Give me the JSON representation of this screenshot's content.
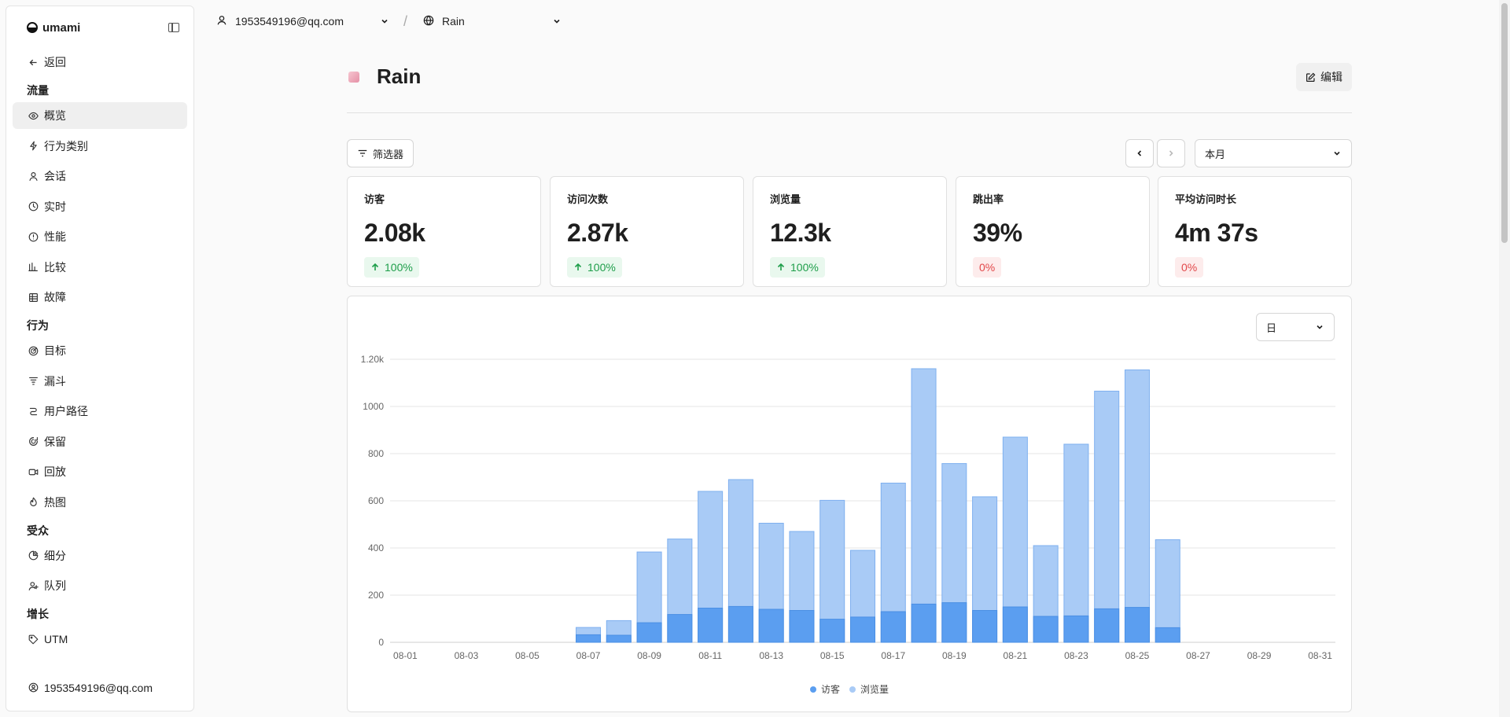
{
  "sidebar": {
    "brand": "umami",
    "back": "返回",
    "sections": [
      {
        "title": "流量",
        "items": [
          {
            "label": "概览",
            "icon": "eye-icon",
            "active": true
          },
          {
            "label": "行为类别",
            "icon": "bolt-icon"
          },
          {
            "label": "会话",
            "icon": "user-icon"
          },
          {
            "label": "实时",
            "icon": "clock-icon"
          },
          {
            "label": "性能",
            "icon": "gauge-icon"
          },
          {
            "label": "比较",
            "icon": "compare-icon"
          },
          {
            "label": "故障",
            "icon": "grid-icon"
          }
        ]
      },
      {
        "title": "行为",
        "items": [
          {
            "label": "目标",
            "icon": "target-icon"
          },
          {
            "label": "漏斗",
            "icon": "funnel-icon"
          },
          {
            "label": "用户路径",
            "icon": "path-icon"
          },
          {
            "label": "保留",
            "icon": "retention-icon"
          },
          {
            "label": "回放",
            "icon": "video-icon"
          },
          {
            "label": "热图",
            "icon": "flame-icon"
          }
        ]
      },
      {
        "title": "受众",
        "items": [
          {
            "label": "细分",
            "icon": "pie-icon"
          },
          {
            "label": "队列",
            "icon": "user-plus-icon"
          }
        ]
      },
      {
        "title": "增长",
        "items": [
          {
            "label": "UTM",
            "icon": "tag-icon"
          }
        ]
      }
    ],
    "user": "1953549196@qq.com"
  },
  "topbar": {
    "user": "1953549196@qq.com",
    "separator": "/",
    "site": "Rain"
  },
  "header": {
    "title": "Rain",
    "edit": "编辑"
  },
  "controls": {
    "filter": "筛选器",
    "period": "本月",
    "unit": "日"
  },
  "metrics": [
    {
      "label": "访客",
      "value": "2.08k",
      "delta": "100%",
      "trend": "up"
    },
    {
      "label": "访问次数",
      "value": "2.87k",
      "delta": "100%",
      "trend": "up"
    },
    {
      "label": "浏览量",
      "value": "12.3k",
      "delta": "100%",
      "trend": "up"
    },
    {
      "label": "跳出率",
      "value": "39%",
      "delta": "0%",
      "trend": "flat"
    },
    {
      "label": "平均访问时长",
      "value": "4m 37s",
      "delta": "0%",
      "trend": "flat"
    }
  ],
  "colors": {
    "visitors": "#5b9ef0",
    "pageviews": "#a9cbf6",
    "up": "#1e9e4a",
    "down": "#e2484a"
  },
  "chart_data": {
    "type": "bar",
    "stacked": "overlay",
    "categories": [
      "08-01",
      "08-02",
      "08-03",
      "08-04",
      "08-05",
      "08-06",
      "08-07",
      "08-08",
      "08-09",
      "08-10",
      "08-11",
      "08-12",
      "08-13",
      "08-14",
      "08-15",
      "08-16",
      "08-17",
      "08-18",
      "08-19",
      "08-20",
      "08-21",
      "08-22",
      "08-23",
      "08-24",
      "08-25",
      "08-26",
      "08-27",
      "08-28",
      "08-29",
      "08-30",
      "08-31"
    ],
    "tick_labels": [
      "08-01",
      "08-03",
      "08-05",
      "08-07",
      "08-09",
      "08-11",
      "08-13",
      "08-15",
      "08-17",
      "08-19",
      "08-21",
      "08-23",
      "08-25",
      "08-27",
      "08-29",
      "08-31"
    ],
    "y_ticks": [
      "0",
      "200",
      "400",
      "600",
      "800",
      "1000",
      "1.20k"
    ],
    "ylim": [
      0,
      1200
    ],
    "series": [
      {
        "name": "访客",
        "values": [
          0,
          0,
          0,
          0,
          0,
          0,
          32,
          30,
          83,
          118,
          145,
          152,
          140,
          135,
          98,
          107,
          130,
          162,
          168,
          135,
          150,
          110,
          112,
          142,
          148,
          62,
          0,
          0,
          0,
          0,
          0
        ]
      },
      {
        "name": "浏览量",
        "values": [
          0,
          0,
          0,
          0,
          0,
          0,
          63,
          92,
          383,
          438,
          640,
          690,
          505,
          470,
          602,
          390,
          675,
          1160,
          758,
          617,
          870,
          410,
          840,
          1065,
          1155,
          435,
          0,
          0,
          0,
          0,
          0
        ]
      }
    ],
    "legend_position": "bottom",
    "grid": true
  }
}
